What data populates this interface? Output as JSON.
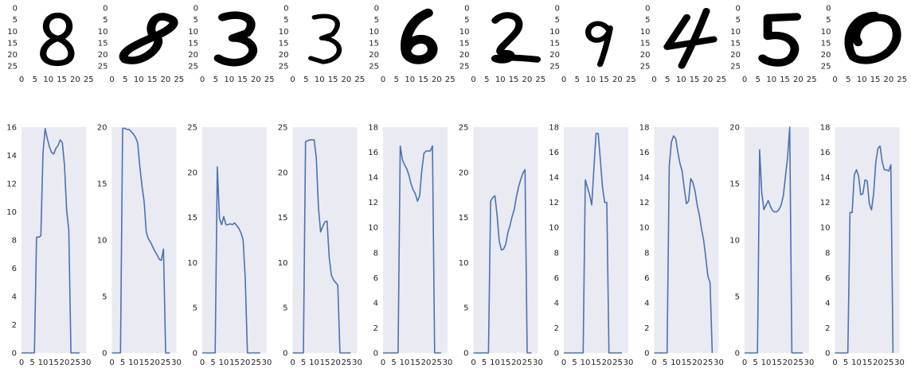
{
  "colors": {
    "background": "#ffffff",
    "plot_background": "#eaeaf2",
    "line": "#4c72b0",
    "digit_ink": "#000000",
    "tick_text": "#222222"
  },
  "chart_data": [
    {
      "type": "image",
      "digit": "8",
      "xlim": [
        0,
        27
      ],
      "ylim": [
        27,
        0
      ],
      "xticks": [
        0,
        5,
        10,
        15,
        20,
        25
      ],
      "yticks": [
        0,
        5,
        10,
        15,
        20,
        25
      ]
    },
    {
      "type": "image",
      "digit": "8",
      "xlim": [
        0,
        27
      ],
      "ylim": [
        27,
        0
      ],
      "xticks": [
        0,
        5,
        10,
        15,
        20,
        25
      ],
      "yticks": [
        0,
        5,
        10,
        15,
        20,
        25
      ]
    },
    {
      "type": "image",
      "digit": "3",
      "xlim": [
        0,
        27
      ],
      "ylim": [
        27,
        0
      ],
      "xticks": [
        0,
        5,
        10,
        15,
        20,
        25
      ],
      "yticks": [
        0,
        5,
        10,
        15,
        20,
        25
      ]
    },
    {
      "type": "image",
      "digit": "3",
      "xlim": [
        0,
        27
      ],
      "ylim": [
        27,
        0
      ],
      "xticks": [
        0,
        5,
        10,
        15,
        20,
        25
      ],
      "yticks": [
        0,
        5,
        10,
        15,
        20,
        25
      ]
    },
    {
      "type": "image",
      "digit": "6",
      "xlim": [
        0,
        27
      ],
      "ylim": [
        27,
        0
      ],
      "xticks": [
        0,
        5,
        10,
        15,
        20,
        25
      ],
      "yticks": [
        0,
        5,
        10,
        15,
        20,
        25
      ]
    },
    {
      "type": "image",
      "digit": "2",
      "xlim": [
        0,
        27
      ],
      "ylim": [
        27,
        0
      ],
      "xticks": [
        0,
        5,
        10,
        15,
        20,
        25
      ],
      "yticks": [
        0,
        5,
        10,
        15,
        20,
        25
      ]
    },
    {
      "type": "image",
      "digit": "9",
      "xlim": [
        0,
        27
      ],
      "ylim": [
        27,
        0
      ],
      "xticks": [
        0,
        5,
        10,
        15,
        20,
        25
      ],
      "yticks": [
        0,
        5,
        10,
        15,
        20,
        25
      ]
    },
    {
      "type": "image",
      "digit": "4",
      "xlim": [
        0,
        27
      ],
      "ylim": [
        27,
        0
      ],
      "xticks": [
        0,
        5,
        10,
        15,
        20,
        25
      ],
      "yticks": [
        0,
        5,
        10,
        15,
        20,
        25
      ]
    },
    {
      "type": "image",
      "digit": "5",
      "xlim": [
        0,
        27
      ],
      "ylim": [
        27,
        0
      ],
      "xticks": [
        0,
        5,
        10,
        15,
        20,
        25
      ],
      "yticks": [
        0,
        5,
        10,
        15,
        20,
        25
      ]
    },
    {
      "type": "image",
      "digit": "0",
      "xlim": [
        0,
        27
      ],
      "ylim": [
        27,
        0
      ],
      "xticks": [
        0,
        5,
        10,
        15,
        20,
        25
      ],
      "yticks": [
        0,
        5,
        10,
        15,
        20,
        25
      ]
    },
    {
      "type": "line",
      "xlim": [
        0,
        30
      ],
      "ylim": [
        0,
        16
      ],
      "xticks": [
        0,
        5,
        10,
        15,
        20,
        25,
        30
      ],
      "yticks": [
        0,
        2,
        4,
        6,
        8,
        10,
        12,
        14,
        16
      ],
      "grid": false,
      "series": [
        {
          "x": [
            0,
            1,
            2,
            3,
            4,
            5,
            6,
            7,
            8,
            9,
            10,
            11,
            12,
            13,
            14,
            15,
            16,
            17,
            18,
            19,
            20,
            21,
            22,
            23,
            24,
            25,
            26,
            27
          ],
          "y": [
            0,
            0,
            0,
            0,
            0,
            0,
            0,
            8.2,
            8.2,
            8.3,
            14.2,
            15.9,
            15.2,
            14.6,
            14.2,
            14.1,
            14.5,
            14.7,
            15.1,
            14.9,
            13.3,
            10.1,
            8.7,
            0,
            0,
            0,
            0,
            0
          ]
        }
      ]
    },
    {
      "type": "line",
      "xlim": [
        0,
        30
      ],
      "ylim": [
        0,
        20
      ],
      "xticks": [
        0,
        5,
        10,
        15,
        20,
        25,
        30
      ],
      "yticks": [
        0,
        5,
        10,
        15,
        20
      ],
      "grid": false,
      "series": [
        {
          "x": [
            0,
            1,
            2,
            3,
            4,
            5,
            6,
            7,
            8,
            9,
            10,
            11,
            12,
            13,
            14,
            15,
            16,
            17,
            18,
            19,
            20,
            21,
            22,
            23,
            24,
            25,
            26,
            27
          ],
          "y": [
            0,
            0,
            0,
            0,
            0,
            19.9,
            19.9,
            19.8,
            19.8,
            19.6,
            19.4,
            19.1,
            18.6,
            16.5,
            14.8,
            13.4,
            10.7,
            10.1,
            9.8,
            9.4,
            9.0,
            8.7,
            8.3,
            8.2,
            9.2,
            0,
            0,
            0
          ]
        }
      ]
    },
    {
      "type": "line",
      "xlim": [
        0,
        30
      ],
      "ylim": [
        0,
        25
      ],
      "xticks": [
        0,
        5,
        10,
        15,
        20,
        25,
        30
      ],
      "yticks": [
        0,
        5,
        10,
        15,
        20,
        25
      ],
      "grid": false,
      "series": [
        {
          "x": [
            0,
            1,
            2,
            3,
            4,
            5,
            6,
            7,
            8,
            9,
            10,
            11,
            12,
            13,
            14,
            15,
            16,
            17,
            18,
            19,
            20,
            21,
            22,
            23,
            24,
            25,
            26,
            27
          ],
          "y": [
            0,
            0,
            0,
            0,
            0,
            0,
            0,
            20.6,
            14.9,
            14.2,
            15.1,
            14.2,
            14.2,
            14.3,
            14.2,
            14.4,
            14.1,
            13.8,
            13.3,
            12.5,
            8.2,
            0,
            0,
            0,
            0,
            0,
            0,
            0
          ]
        }
      ]
    },
    {
      "type": "line",
      "xlim": [
        0,
        30
      ],
      "ylim": [
        0,
        25
      ],
      "xticks": [
        0,
        5,
        10,
        15,
        20,
        25,
        30
      ],
      "yticks": [
        0,
        5,
        10,
        15,
        20,
        25
      ],
      "grid": false,
      "series": [
        {
          "x": [
            0,
            1,
            2,
            3,
            4,
            5,
            6,
            7,
            8,
            9,
            10,
            11,
            12,
            13,
            14,
            15,
            16,
            17,
            18,
            19,
            20,
            21,
            22,
            23,
            24,
            25,
            26,
            27
          ],
          "y": [
            0,
            0,
            0,
            0,
            0,
            0,
            23.4,
            23.5,
            23.6,
            23.6,
            23.6,
            21.6,
            16.1,
            13.4,
            14.0,
            14.5,
            14.6,
            10.6,
            8.6,
            8.1,
            7.8,
            7.5,
            0,
            0,
            0,
            0,
            0,
            0
          ]
        }
      ]
    },
    {
      "type": "line",
      "xlim": [
        0,
        30
      ],
      "ylim": [
        0,
        18
      ],
      "xticks": [
        0,
        5,
        10,
        15,
        20,
        25,
        30
      ],
      "yticks": [
        0,
        2,
        4,
        6,
        8,
        10,
        12,
        14,
        16,
        18
      ],
      "grid": false,
      "series": [
        {
          "x": [
            0,
            1,
            2,
            3,
            4,
            5,
            6,
            7,
            8,
            9,
            10,
            11,
            12,
            13,
            14,
            15,
            16,
            17,
            18,
            19,
            20,
            21,
            22,
            23,
            24,
            25,
            26,
            27
          ],
          "y": [
            0,
            0,
            0,
            0,
            0,
            0,
            0,
            0,
            16.5,
            15.4,
            15.0,
            14.7,
            14.2,
            13.5,
            13.0,
            12.7,
            12.1,
            12.5,
            14.5,
            15.9,
            16.1,
            16.1,
            16.1,
            16.5,
            0,
            0,
            0,
            0
          ]
        }
      ]
    },
    {
      "type": "line",
      "xlim": [
        0,
        30
      ],
      "ylim": [
        0,
        25
      ],
      "xticks": [
        0,
        5,
        10,
        15,
        20,
        25,
        30
      ],
      "yticks": [
        0,
        5,
        10,
        15,
        20,
        25
      ],
      "grid": false,
      "series": [
        {
          "x": [
            0,
            1,
            2,
            3,
            4,
            5,
            6,
            7,
            8,
            9,
            10,
            11,
            12,
            13,
            14,
            15,
            16,
            17,
            18,
            19,
            20,
            21,
            22,
            23,
            24,
            25,
            26,
            27
          ],
          "y": [
            0,
            0,
            0,
            0,
            0,
            0,
            0,
            0,
            16.8,
            17.2,
            17.4,
            15.3,
            12.4,
            11.4,
            11.5,
            12.0,
            13.3,
            14.1,
            15.1,
            15.9,
            17.3,
            18.4,
            19.2,
            19.9,
            20.3,
            0,
            0,
            0
          ]
        }
      ]
    },
    {
      "type": "line",
      "xlim": [
        0,
        30
      ],
      "ylim": [
        0,
        18
      ],
      "xticks": [
        0,
        5,
        10,
        15,
        20,
        25,
        30
      ],
      "yticks": [
        0,
        2,
        4,
        6,
        8,
        10,
        12,
        14,
        16,
        18
      ],
      "grid": false,
      "series": [
        {
          "x": [
            0,
            1,
            2,
            3,
            4,
            5,
            6,
            7,
            8,
            9,
            10,
            11,
            12,
            13,
            14,
            15,
            16,
            17,
            18,
            19,
            20,
            21,
            22,
            23,
            24,
            25,
            26,
            27
          ],
          "y": [
            0,
            0,
            0,
            0,
            0,
            0,
            0,
            0,
            0,
            0,
            13.8,
            13.2,
            12.6,
            11.8,
            14.7,
            17.5,
            17.5,
            15.4,
            13.2,
            12.0,
            12.0,
            0,
            0,
            0,
            0,
            0,
            0,
            0
          ]
        }
      ]
    },
    {
      "type": "line",
      "xlim": [
        0,
        30
      ],
      "ylim": [
        0,
        18
      ],
      "xticks": [
        0,
        5,
        10,
        15,
        20,
        25,
        30
      ],
      "yticks": [
        0,
        2,
        4,
        6,
        8,
        10,
        12,
        14,
        16,
        18
      ],
      "grid": false,
      "series": [
        {
          "x": [
            0,
            1,
            2,
            3,
            4,
            5,
            6,
            7,
            8,
            9,
            10,
            11,
            12,
            13,
            14,
            15,
            16,
            17,
            18,
            19,
            20,
            21,
            22,
            23,
            24,
            25,
            26,
            27
          ],
          "y": [
            0,
            0,
            0,
            0,
            0,
            0,
            0,
            14.9,
            16.8,
            17.3,
            17.1,
            16.0,
            15.1,
            14.5,
            13.1,
            11.9,
            12.1,
            13.9,
            13.6,
            12.9,
            11.8,
            11.0,
            9.9,
            9.0,
            7.6,
            6.1,
            5.6,
            0
          ]
        }
      ]
    },
    {
      "type": "line",
      "xlim": [
        0,
        30
      ],
      "ylim": [
        0,
        20
      ],
      "xticks": [
        0,
        5,
        10,
        15,
        20,
        25,
        30
      ],
      "yticks": [
        0,
        5,
        10,
        15,
        20
      ],
      "grid": false,
      "series": [
        {
          "x": [
            0,
            1,
            2,
            3,
            4,
            5,
            6,
            7,
            8,
            9,
            10,
            11,
            12,
            13,
            14,
            15,
            16,
            17,
            18,
            19,
            20,
            21,
            22,
            23,
            24,
            25,
            26,
            27
          ],
          "y": [
            0,
            0,
            0,
            0,
            0,
            0,
            0,
            18.0,
            14.2,
            12.7,
            13.1,
            13.5,
            13.0,
            12.6,
            12.5,
            12.5,
            12.7,
            13.1,
            13.9,
            15.6,
            17.3,
            20.0,
            0,
            0,
            0,
            0,
            0,
            0
          ]
        }
      ]
    },
    {
      "type": "line",
      "xlim": [
        0,
        30
      ],
      "ylim": [
        0,
        18
      ],
      "xticks": [
        0,
        5,
        10,
        15,
        20,
        25,
        30
      ],
      "yticks": [
        0,
        2,
        4,
        6,
        8,
        10,
        12,
        14,
        16,
        18
      ],
      "grid": false,
      "series": [
        {
          "x": [
            0,
            1,
            2,
            3,
            4,
            5,
            6,
            7,
            8,
            9,
            10,
            11,
            12,
            13,
            14,
            15,
            16,
            17,
            18,
            19,
            20,
            21,
            22,
            23,
            24,
            25,
            26,
            27
          ],
          "y": [
            0,
            0,
            0,
            0,
            0,
            0,
            0,
            11.2,
            11.2,
            14.2,
            14.6,
            14.1,
            12.6,
            12.7,
            13.8,
            13.7,
            11.9,
            11.4,
            12.7,
            15.2,
            16.3,
            16.5,
            15.2,
            14.6,
            14.6,
            14.5,
            15.0,
            0
          ]
        }
      ]
    }
  ]
}
